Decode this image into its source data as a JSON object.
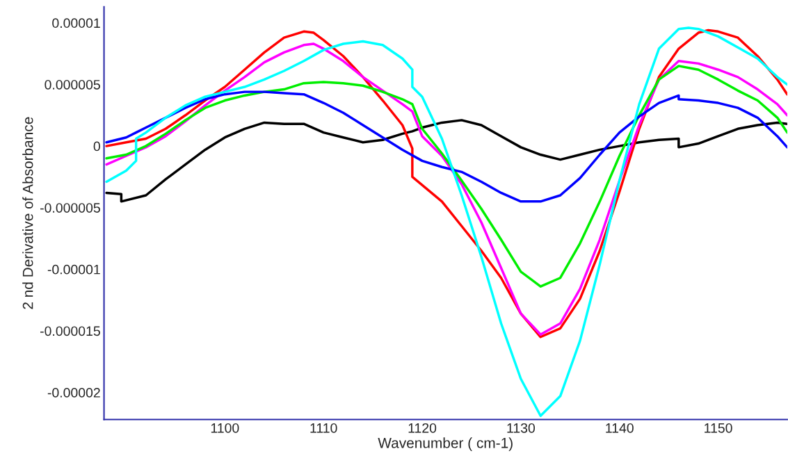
{
  "chart_data": {
    "type": "line",
    "xlabel": "Wavenumber ( cm-1)",
    "ylabel": "2 nd Derivative of Absorbance",
    "xlim": [
      1087.75,
      1157
    ],
    "ylim": [
      -2.22e-05,
      1.13e-05
    ],
    "xticks": [
      1100,
      1110,
      1120,
      1130,
      1140,
      1150
    ],
    "yticks": [
      {
        "value": 1e-05,
        "label": "0.00001"
      },
      {
        "value": 5e-06,
        "label": "0.000005"
      },
      {
        "value": 0,
        "label": "0"
      },
      {
        "value": -5e-06,
        "label": "-0.000005"
      },
      {
        "value": -1e-05,
        "label": "-0.00001"
      },
      {
        "value": -1.5e-05,
        "label": "-0.000015"
      },
      {
        "value": -2e-05,
        "label": "-0.00002"
      }
    ],
    "grid": false,
    "legend": false,
    "marker": "none",
    "line_style": "solid",
    "series": [
      {
        "color": "#000000",
        "x": [
          1088,
          1089.5,
          1089.5,
          1092,
          1094,
          1096,
          1098,
          1100,
          1102,
          1104,
          1106,
          1108,
          1110,
          1112,
          1114,
          1116,
          1118,
          1119,
          1120,
          1122,
          1124,
          1126,
          1128,
          1130,
          1132,
          1134,
          1136,
          1138,
          1140,
          1142,
          1144,
          1146,
          1146,
          1148,
          1150,
          1152,
          1154,
          1156,
          1157
        ],
        "values": [
          -3.8e-06,
          -3.9e-06,
          -4.5e-06,
          -4e-06,
          -2.7e-06,
          -1.5e-06,
          -3e-07,
          7e-07,
          1.4e-06,
          1.9e-06,
          1.8e-06,
          1.8e-06,
          1.1e-06,
          7e-07,
          3e-07,
          5e-07,
          1e-06,
          1.2e-06,
          1.5e-06,
          1.9e-06,
          2.1e-06,
          1.7e-06,
          8e-07,
          -1e-07,
          -7e-07,
          -1.1e-06,
          -7e-07,
          -3e-07,
          0.0,
          3e-07,
          5e-07,
          6e-07,
          -1e-07,
          2e-07,
          8e-07,
          1.4e-06,
          1.7e-06,
          1.9e-06,
          1.8e-06
        ]
      },
      {
        "color": "#ff0000",
        "x": [
          1088,
          1090,
          1092,
          1094,
          1096,
          1098,
          1100,
          1102,
          1104,
          1106,
          1108,
          1109,
          1110,
          1112,
          1114,
          1116,
          1118,
          1119,
          1119,
          1122,
          1124,
          1126,
          1128,
          1130,
          1132,
          1134,
          1136,
          1138,
          1140,
          1142,
          1144,
          1146,
          1148,
          1149,
          1150,
          1152,
          1154,
          1156,
          1157
        ],
        "values": [
          0.0,
          3e-07,
          6e-07,
          1.4e-06,
          2.5e-06,
          3.7e-06,
          4.8e-06,
          6.2e-06,
          7.6e-06,
          8.8e-06,
          9.3e-06,
          9.2e-06,
          8.6e-06,
          7.3e-06,
          5.6e-06,
          3.7e-06,
          1.7e-06,
          -2e-07,
          -2.5e-06,
          -4.5e-06,
          -6.5e-06,
          -8.5e-06,
          -1.07e-05,
          -1.36e-05,
          -1.55e-05,
          -1.48e-05,
          -1.24e-05,
          -8.5e-06,
          -3.7e-06,
          1.4e-06,
          5.6e-06,
          7.9e-06,
          9.2e-06,
          9.4e-06,
          9.3e-06,
          8.8e-06,
          7.3e-06,
          5.4e-06,
          4.2e-06
        ]
      },
      {
        "color": "#ff00ff",
        "x": [
          1088,
          1090,
          1092,
          1094,
          1096,
          1098,
          1100,
          1102,
          1104,
          1106,
          1108,
          1109,
          1110,
          1112,
          1114,
          1116,
          1118,
          1119,
          1120,
          1122,
          1124,
          1126,
          1128,
          1130,
          1132,
          1134,
          1136,
          1138,
          1140,
          1142,
          1144,
          1146,
          1148,
          1150,
          1152,
          1154,
          1156,
          1157
        ],
        "values": [
          -1.5e-06,
          -8e-07,
          -1e-07,
          8e-07,
          2e-06,
          3.3e-06,
          4.5e-06,
          5.6e-06,
          6.8e-06,
          7.6e-06,
          8.2e-06,
          8.3e-06,
          7.9e-06,
          6.9e-06,
          5.6e-06,
          4.5e-06,
          3.4e-06,
          2.8e-06,
          8e-07,
          -8e-07,
          -3.1e-06,
          -6.2e-06,
          -9.9e-06,
          -1.36e-05,
          -1.53e-05,
          -1.44e-05,
          -1.16e-05,
          -7.6e-06,
          -2.8e-06,
          1.7e-06,
          5.4e-06,
          6.9e-06,
          6.7e-06,
          6.2e-06,
          5.6e-06,
          4.6e-06,
          3.4e-06,
          2.5e-06
        ]
      },
      {
        "color": "#00ee00",
        "x": [
          1088,
          1090,
          1092,
          1094,
          1096,
          1098,
          1100,
          1102,
          1104,
          1106,
          1108,
          1110,
          1112,
          1114,
          1116,
          1118,
          1119,
          1120,
          1122,
          1124,
          1126,
          1128,
          1130,
          1132,
          1134,
          1136,
          1138,
          1140,
          1142,
          1144,
          1146,
          1148,
          1150,
          1152,
          1154,
          1156,
          1157
        ],
        "values": [
          -1e-06,
          -7e-07,
          0.0,
          1e-06,
          2.1e-06,
          3.1e-06,
          3.7e-06,
          4.1e-06,
          4.4e-06,
          4.6e-06,
          5.1e-06,
          5.2e-06,
          5.1e-06,
          4.9e-06,
          4.4e-06,
          3.8e-06,
          3.4e-06,
          1.4e-06,
          -6e-07,
          -2.8e-06,
          -5.1e-06,
          -7.6e-06,
          -1.02e-05,
          -1.14e-05,
          -1.07e-05,
          -7.9e-06,
          -4.5e-06,
          -8e-07,
          2.5e-06,
          5.4e-06,
          6.5e-06,
          6.2e-06,
          5.4e-06,
          4.5e-06,
          3.7e-06,
          2.3e-06,
          1.1e-06
        ]
      },
      {
        "color": "#0000ff",
        "x": [
          1088,
          1090,
          1091,
          1092,
          1094,
          1096,
          1098,
          1100,
          1102,
          1104,
          1106,
          1108,
          1110,
          1112,
          1114,
          1116,
          1118,
          1120,
          1122,
          1124,
          1126,
          1128,
          1130,
          1132,
          1134,
          1136,
          1138,
          1140,
          1142,
          1144,
          1146,
          1146,
          1148,
          1150,
          1152,
          1154,
          1156,
          1157
        ],
        "values": [
          3e-07,
          7e-07,
          1.1e-06,
          1.5e-06,
          2.3e-06,
          3.1e-06,
          3.8e-06,
          4.2e-06,
          4.4e-06,
          4.4e-06,
          4.3e-06,
          4.2e-06,
          3.5e-06,
          2.7e-06,
          1.7e-06,
          7e-07,
          -3e-07,
          -1.2e-06,
          -1.7e-06,
          -2.1e-06,
          -2.9e-06,
          -3.8e-06,
          -4.5e-06,
          -4.5e-06,
          -4e-06,
          -2.6e-06,
          -7e-07,
          1.1e-06,
          2.4e-06,
          3.5e-06,
          4.1e-06,
          3.8e-06,
          3.7e-06,
          3.5e-06,
          3.1e-06,
          2.3e-06,
          8e-07,
          -1e-07
        ]
      },
      {
        "color": "#00ffff",
        "x": [
          1088,
          1090,
          1091,
          1091,
          1092,
          1094,
          1096,
          1098,
          1100,
          1102,
          1104,
          1106,
          1108,
          1110,
          1112,
          1114,
          1116,
          1118,
          1119,
          1119,
          1120,
          1122,
          1124,
          1126,
          1128,
          1130,
          1132,
          1134,
          1136,
          1138,
          1140,
          1142,
          1144,
          1146,
          1147,
          1148,
          1150,
          1152,
          1154,
          1156,
          1157
        ],
        "values": [
          -2.9e-06,
          -2e-06,
          -1.2e-06,
          6e-07,
          1.1e-06,
          2.3e-06,
          3.3e-06,
          4e-06,
          4.4e-06,
          4.8e-06,
          5.4e-06,
          6.1e-06,
          6.9e-06,
          7.8e-06,
          8.3e-06,
          8.5e-06,
          8.2e-06,
          7.1e-06,
          6.2e-06,
          4.8e-06,
          4e-06,
          6e-07,
          -4e-06,
          -9e-06,
          -1.44e-05,
          -1.89e-05,
          -2.19e-05,
          -2.03e-05,
          -1.58e-05,
          -9.6e-06,
          -2.8e-06,
          3.4e-06,
          7.9e-06,
          9.5e-06,
          9.6e-06,
          9.5e-06,
          8.9e-06,
          8e-06,
          7.1e-06,
          5.6e-06,
          5e-06
        ]
      }
    ]
  }
}
